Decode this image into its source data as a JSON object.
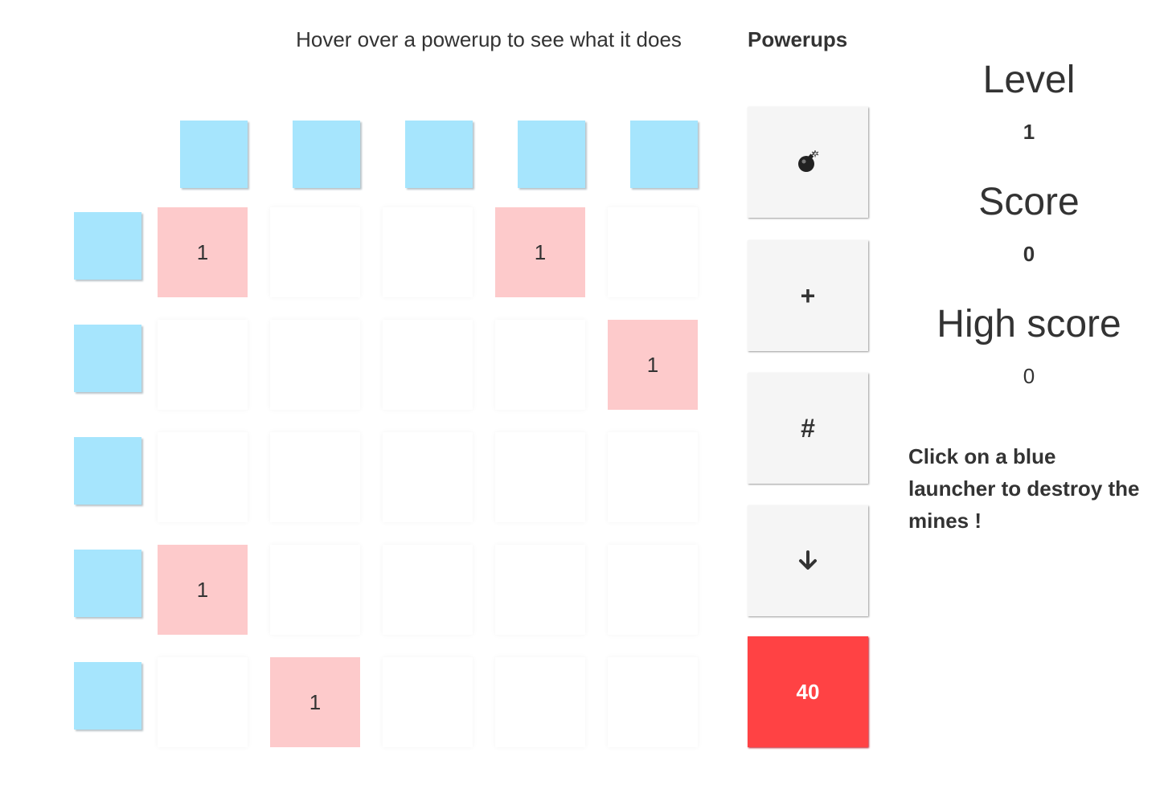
{
  "hint": "Hover over a powerup to see what it does",
  "powerups_title": "Powerups",
  "powerups": [
    {
      "name": "bomb",
      "glyph": "💣"
    },
    {
      "name": "plus",
      "glyph": "+"
    },
    {
      "name": "hash",
      "glyph": "#"
    },
    {
      "name": "down-arrow",
      "glyph": "down-arrow-icon"
    }
  ],
  "counter": "40",
  "level": {
    "label": "Level",
    "value": "1"
  },
  "score": {
    "label": "Score",
    "value": "0"
  },
  "high_score": {
    "label": "High score",
    "value": "0"
  },
  "instructions": "Click on a blue launcher to destroy the mines !",
  "grid": {
    "rows": [
      [
        "1",
        "",
        "",
        "1",
        ""
      ],
      [
        "",
        "",
        "",
        "",
        "1"
      ],
      [
        "",
        "",
        "",
        "",
        ""
      ],
      [
        "1",
        "",
        "",
        "",
        ""
      ],
      [
        "",
        "1",
        "",
        "",
        ""
      ]
    ]
  },
  "colors": {
    "launcher": "#a6e5fd",
    "mine": "#fdcacb",
    "counter": "#ff4244",
    "powerup_bg": "#f5f5f5"
  }
}
